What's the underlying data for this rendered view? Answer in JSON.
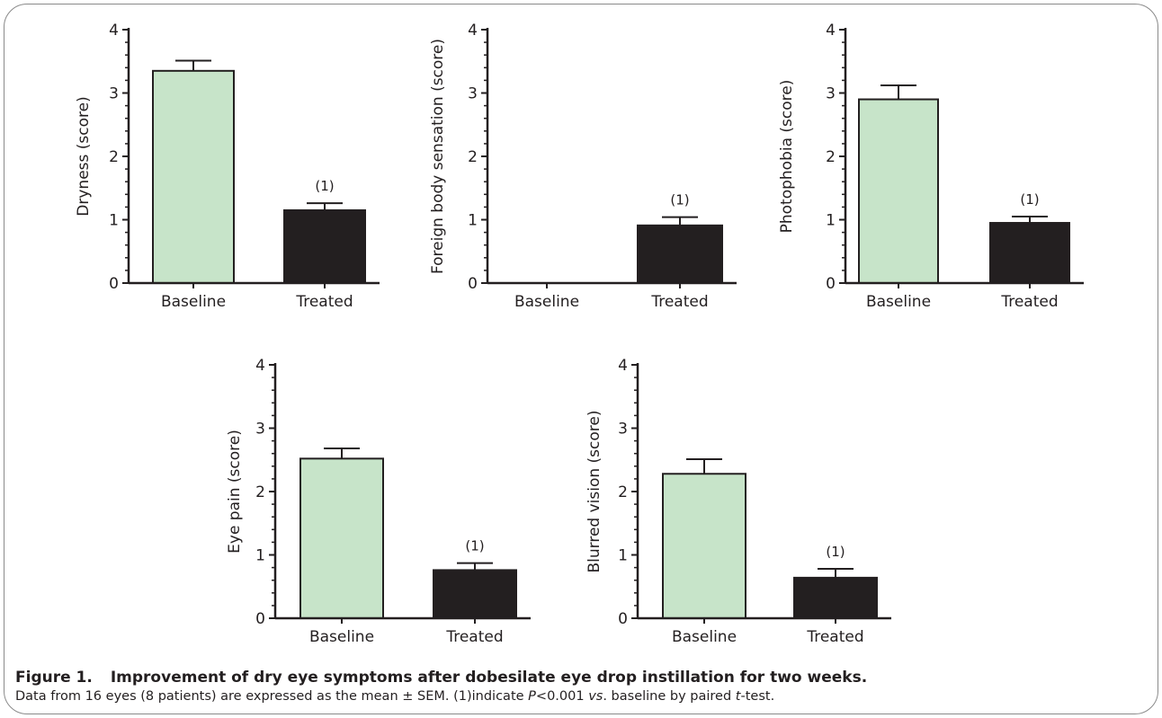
{
  "chart_data": [
    {
      "type": "bar",
      "categories": [
        "Baseline",
        "Treated"
      ],
      "values": [
        3.35,
        1.15
      ],
      "errors": [
        0.16,
        0.11
      ],
      "bar_colors": [
        "#c7e4c9",
        "#231f20"
      ],
      "annotations": [
        "",
        "(1)"
      ],
      "ylabel": "Dryness (score)",
      "ylim": [
        0,
        4
      ],
      "yticks": [
        "0",
        "1",
        "2",
        "3",
        "4"
      ]
    },
    {
      "type": "bar",
      "categories": [
        "Baseline",
        "Treated"
      ],
      "values": [
        0,
        0.91
      ],
      "errors": [
        0,
        0.13
      ],
      "bar_colors": [
        "#c7e4c9",
        "#231f20"
      ],
      "annotations": [
        "",
        "(1)"
      ],
      "ylabel": "Foreign body sensation (score)",
      "ylim": [
        0,
        4
      ],
      "yticks": [
        "0",
        "1",
        "2",
        "3",
        "4"
      ]
    },
    {
      "type": "bar",
      "categories": [
        "Baseline",
        "Treated"
      ],
      "values": [
        2.9,
        0.95
      ],
      "errors": [
        0.22,
        0.1
      ],
      "bar_colors": [
        "#c7e4c9",
        "#231f20"
      ],
      "annotations": [
        "",
        "(1)"
      ],
      "ylabel": "Photophobia (score)",
      "ylim": [
        0,
        4
      ],
      "yticks": [
        "0",
        "1",
        "2",
        "3",
        "4"
      ]
    },
    {
      "type": "bar",
      "categories": [
        "Baseline",
        "Treated"
      ],
      "values": [
        2.52,
        0.76
      ],
      "errors": [
        0.16,
        0.11
      ],
      "bar_colors": [
        "#c7e4c9",
        "#231f20"
      ],
      "annotations": [
        "",
        "(1)"
      ],
      "ylabel": "Eye pain (score)",
      "ylim": [
        0,
        4
      ],
      "yticks": [
        "0",
        "1",
        "2",
        "3",
        "4"
      ]
    },
    {
      "type": "bar",
      "categories": [
        "Baseline",
        "Treated"
      ],
      "values": [
        2.28,
        0.64
      ],
      "errors": [
        0.23,
        0.14
      ],
      "bar_colors": [
        "#c7e4c9",
        "#231f20"
      ],
      "annotations": [
        "",
        "(1)"
      ],
      "ylabel": "Blurred vision (score)",
      "ylim": [
        0,
        4
      ],
      "yticks": [
        "0",
        "1",
        "2",
        "3",
        "4"
      ]
    }
  ],
  "caption": {
    "label": "Figure 1.",
    "title": "Improvement of dry eye symptoms after dobesilate eye drop instillation for two weeks.",
    "note_part1": "Data from 16 eyes (8 patients) are expressed as the mean ± SEM. (1)indicate ",
    "note_p": "P",
    "note_part2": "<0.001 ",
    "note_vs": "vs",
    "note_part3": ". baseline by paired ",
    "note_t": "t",
    "note_part4": "-test."
  }
}
